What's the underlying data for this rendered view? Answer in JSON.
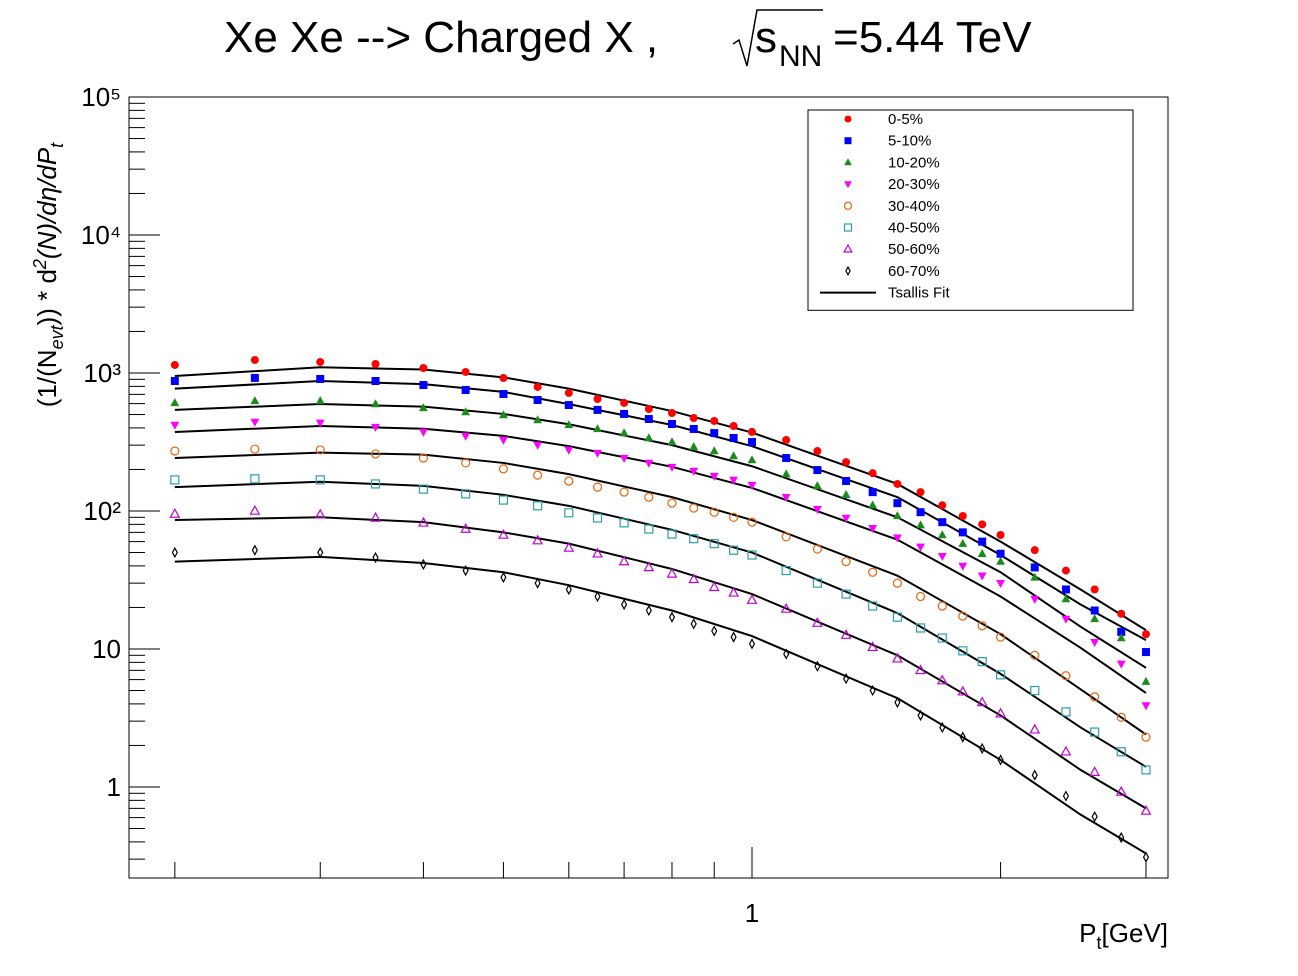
{
  "chart_data": {
    "type": "scatter",
    "title": [
      "Xe Xe --> Charged X ,",
      "s",
      "NN",
      "=5.44 TeV"
    ],
    "xlabel": [
      "P",
      "t",
      "[GeV]"
    ],
    "ylabel": [
      "(1/(N",
      "evt",
      ")) * d",
      "2",
      "(N)/dη/dP",
      "t"
    ],
    "xlog": true,
    "ylog": true,
    "xlim": [
      0.176,
      3.19
    ],
    "ylim": [
      0.219,
      100000
    ],
    "xticks": [
      {
        "value": 0.2,
        "label": null
      },
      {
        "value": 0.3,
        "label": null
      },
      {
        "value": 0.4,
        "label": null
      },
      {
        "value": 0.5,
        "label": null
      },
      {
        "value": 0.6,
        "label": null
      },
      {
        "value": 0.7,
        "label": null
      },
      {
        "value": 0.8,
        "label": null
      },
      {
        "value": 0.9,
        "label": null
      },
      1,
      {
        "value": 2,
        "label": null
      },
      {
        "value": 3,
        "label": null
      }
    ],
    "yticks": [
      1,
      10,
      {
        "value": 100,
        "label": "10²"
      },
      {
        "value": 1000,
        "label": "10³"
      },
      {
        "value": 10000,
        "label": "10⁴"
      },
      {
        "value": 100000,
        "label": "10⁵"
      }
    ],
    "legend": "upper right",
    "x": [
      0.2,
      0.25,
      0.3,
      0.35,
      0.4,
      0.45,
      0.5,
      0.55,
      0.6,
      0.65,
      0.7,
      0.75,
      0.8,
      0.85,
      0.9,
      0.95,
      1.0,
      1.1,
      1.2,
      1.3,
      1.4,
      1.5,
      1.6,
      1.7,
      1.8,
      1.9,
      2.0,
      2.2,
      2.4,
      2.6,
      2.8,
      3.0
    ],
    "series": [
      {
        "name": "0-5%",
        "color": "#ff0000",
        "marker": "circle",
        "values": [
          1143,
          1243,
          1202,
          1162,
          1087,
          1017,
          920,
          792,
          717,
          648,
          607,
          548,
          513,
          472,
          449,
          413,
          374,
          327,
          272,
          226,
          188,
          157,
          137,
          110,
          92,
          80,
          67,
          52,
          37,
          27,
          18,
          12.8
        ]
      },
      {
        "name": "5-10%",
        "color": "#0000ff",
        "marker": "square",
        "values": [
          875,
          921,
          905,
          875,
          818,
          753,
          704,
          637,
          586,
          540,
          505,
          464,
          427,
          393,
          367,
          338,
          316,
          242,
          198,
          165,
          137,
          114,
          98,
          83,
          70,
          60,
          49,
          39,
          27,
          19,
          13.3,
          9.5
        ]
      },
      {
        "name": "10-20%",
        "color": "#1a8c1a",
        "marker": "triangle-up",
        "values": [
          607,
          627,
          627,
          596,
          558,
          521,
          496,
          456,
          420,
          393,
          367,
          338,
          316,
          291,
          272,
          250,
          234,
          185,
          152,
          131,
          110,
          92,
          79,
          67,
          58,
          49,
          43,
          33,
          23,
          16.5,
          12,
          5.8
        ]
      },
      {
        "name": "20-30%",
        "color": "#ff00ff",
        "marker": "triangle-down",
        "values": [
          420,
          442,
          435,
          406,
          374,
          350,
          327,
          301,
          277,
          263,
          242,
          223,
          208,
          195,
          179,
          168,
          154,
          126,
          103,
          89,
          75,
          64,
          55,
          47,
          40,
          34,
          30,
          23,
          16.5,
          11.2,
          7.8,
          3.9
        ]
      },
      {
        "name": "30-40%",
        "color": "#e8640e",
        "marker": "circle-open",
        "values": [
          272,
          281,
          277,
          259,
          242,
          223,
          202,
          182,
          165,
          149,
          137,
          126,
          114,
          105,
          98,
          90,
          83,
          65,
          53,
          43,
          36,
          30,
          24,
          20.5,
          17.3,
          14.7,
          12.2,
          9.0,
          6.4,
          4.5,
          3.2,
          2.3
        ]
      },
      {
        "name": "40-50%",
        "color": "#2a9fab",
        "marker": "square-open",
        "values": [
          168,
          171,
          168,
          157,
          144,
          133,
          120,
          109,
          97,
          89,
          82,
          74,
          68,
          63,
          58,
          52,
          48,
          37,
          30,
          25,
          20.5,
          17,
          14.2,
          12,
          9.7,
          8.1,
          6.5,
          5.0,
          3.5,
          2.5,
          1.8,
          1.33
        ]
      },
      {
        "name": "50-60%",
        "color": "#c000d0",
        "marker": "triangle-open",
        "values": [
          95,
          100,
          94,
          89,
          82,
          74,
          67,
          61,
          54,
          49,
          43,
          39,
          35,
          32,
          28,
          25.5,
          22.6,
          19.5,
          15.4,
          12.6,
          10.3,
          8.5,
          7.0,
          5.9,
          4.9,
          4.1,
          3.4,
          2.6,
          1.8,
          1.28,
          0.92,
          0.67
        ]
      },
      {
        "name": "60-70%",
        "color": "#000000",
        "marker": "diamond-open",
        "values": [
          50,
          52,
          50,
          46,
          41,
          37,
          33,
          30,
          27,
          24,
          21,
          19,
          17,
          15.2,
          13.5,
          12.2,
          10.9,
          9.2,
          7.5,
          6.1,
          5.0,
          4.1,
          3.3,
          2.7,
          2.3,
          1.9,
          1.57,
          1.22,
          0.86,
          0.61,
          0.43,
          0.31
        ]
      }
    ],
    "fit": {
      "name": "Tsallis Fit",
      "color": "#000000",
      "x": [
        0.2,
        0.3,
        0.4,
        0.5,
        0.6,
        0.8,
        1.0,
        1.5,
        2.0,
        2.5,
        3.0
      ],
      "curves": [
        [
          952,
          1100,
          1060,
          930,
          770,
          530,
          370,
          157,
          60,
          27,
          13.7
        ],
        [
          770,
          875,
          830,
          730,
          595,
          420,
          295,
          126,
          48,
          21,
          11.6
        ],
        [
          540,
          596,
          570,
          505,
          425,
          300,
          211,
          90,
          36,
          14.5,
          7.3
        ],
        [
          374,
          413,
          394,
          350,
          295,
          209,
          147,
          62,
          24,
          10.2,
          4.8
        ],
        [
          242,
          265,
          256,
          223,
          185,
          126,
          86,
          34,
          12.8,
          5.1,
          2.4
        ],
        [
          149,
          163,
          152,
          131,
          109,
          73,
          50,
          18.2,
          6.6,
          2.7,
          1.4
        ],
        [
          86,
          90,
          83,
          70,
          58,
          38,
          25,
          9.0,
          3.3,
          1.33,
          0.7
        ],
        [
          43,
          46.5,
          42,
          36,
          29,
          19,
          12.4,
          4.4,
          1.57,
          0.63,
          0.33
        ]
      ]
    }
  }
}
